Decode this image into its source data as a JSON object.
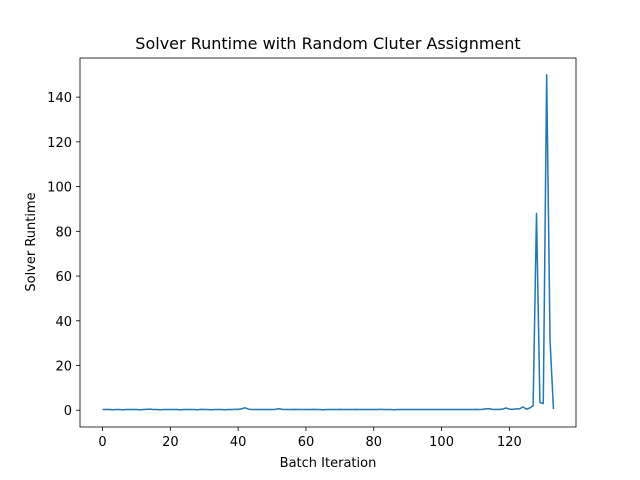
{
  "chart_data": {
    "type": "line",
    "title": "Solver Runtime with Random Cluter Assignment",
    "xlabel": "Batch Iteration",
    "ylabel": "Solver Runtime",
    "xlim": [
      -6.65,
      139.65
    ],
    "ylim": [
      -7.5,
      157.5
    ],
    "xticks": [
      0,
      20,
      40,
      60,
      80,
      100,
      120
    ],
    "yticks": [
      0,
      20,
      40,
      60,
      80,
      100,
      120,
      140
    ],
    "grid": false,
    "series": [
      {
        "color": "#1f77b4",
        "x": [
          0,
          1,
          2,
          3,
          4,
          5,
          6,
          7,
          8,
          9,
          10,
          11,
          12,
          13,
          14,
          15,
          16,
          17,
          18,
          19,
          20,
          21,
          22,
          23,
          24,
          25,
          26,
          27,
          28,
          29,
          30,
          31,
          32,
          33,
          34,
          35,
          36,
          37,
          38,
          39,
          40,
          41,
          42,
          43,
          44,
          45,
          46,
          47,
          48,
          49,
          50,
          51,
          52,
          53,
          54,
          55,
          56,
          57,
          58,
          59,
          60,
          61,
          62,
          63,
          64,
          65,
          66,
          67,
          68,
          69,
          70,
          71,
          72,
          73,
          74,
          75,
          76,
          77,
          78,
          79,
          80,
          81,
          82,
          83,
          84,
          85,
          86,
          87,
          88,
          89,
          90,
          91,
          92,
          93,
          94,
          95,
          96,
          97,
          98,
          99,
          100,
          101,
          102,
          103,
          104,
          105,
          106,
          107,
          108,
          109,
          110,
          111,
          112,
          113,
          114,
          115,
          116,
          117,
          118,
          119,
          120,
          121,
          122,
          123,
          124,
          125,
          126,
          127,
          128,
          129,
          130,
          131,
          132,
          133
        ],
        "y": [
          0.3,
          0.3,
          0.3,
          0.2,
          0.3,
          0.3,
          0.2,
          0.3,
          0.3,
          0.3,
          0.3,
          0.2,
          0.3,
          0.4,
          0.5,
          0.3,
          0.3,
          0.2,
          0.3,
          0.3,
          0.3,
          0.3,
          0.3,
          0.2,
          0.3,
          0.3,
          0.3,
          0.3,
          0.2,
          0.4,
          0.3,
          0.3,
          0.2,
          0.3,
          0.3,
          0.3,
          0.2,
          0.3,
          0.3,
          0.4,
          0.4,
          0.6,
          1.1,
          0.5,
          0.3,
          0.3,
          0.3,
          0.3,
          0.3,
          0.3,
          0.3,
          0.4,
          0.7,
          0.4,
          0.3,
          0.3,
          0.3,
          0.4,
          0.3,
          0.3,
          0.3,
          0.3,
          0.4,
          0.3,
          0.3,
          0.2,
          0.3,
          0.3,
          0.3,
          0.3,
          0.4,
          0.3,
          0.3,
          0.3,
          0.3,
          0.4,
          0.3,
          0.3,
          0.3,
          0.3,
          0.3,
          0.3,
          0.4,
          0.3,
          0.3,
          0.3,
          0.2,
          0.3,
          0.3,
          0.3,
          0.3,
          0.3,
          0.3,
          0.3,
          0.3,
          0.3,
          0.3,
          0.3,
          0.3,
          0.3,
          0.3,
          0.3,
          0.3,
          0.3,
          0.3,
          0.3,
          0.3,
          0.3,
          0.3,
          0.3,
          0.4,
          0.3,
          0.4,
          0.6,
          0.7,
          0.4,
          0.3,
          0.4,
          0.5,
          1.0,
          0.5,
          0.4,
          0.6,
          0.6,
          1.5,
          0.5,
          1.0,
          2.0,
          88,
          3.5,
          3,
          150,
          31,
          0.5
        ]
      }
    ]
  }
}
